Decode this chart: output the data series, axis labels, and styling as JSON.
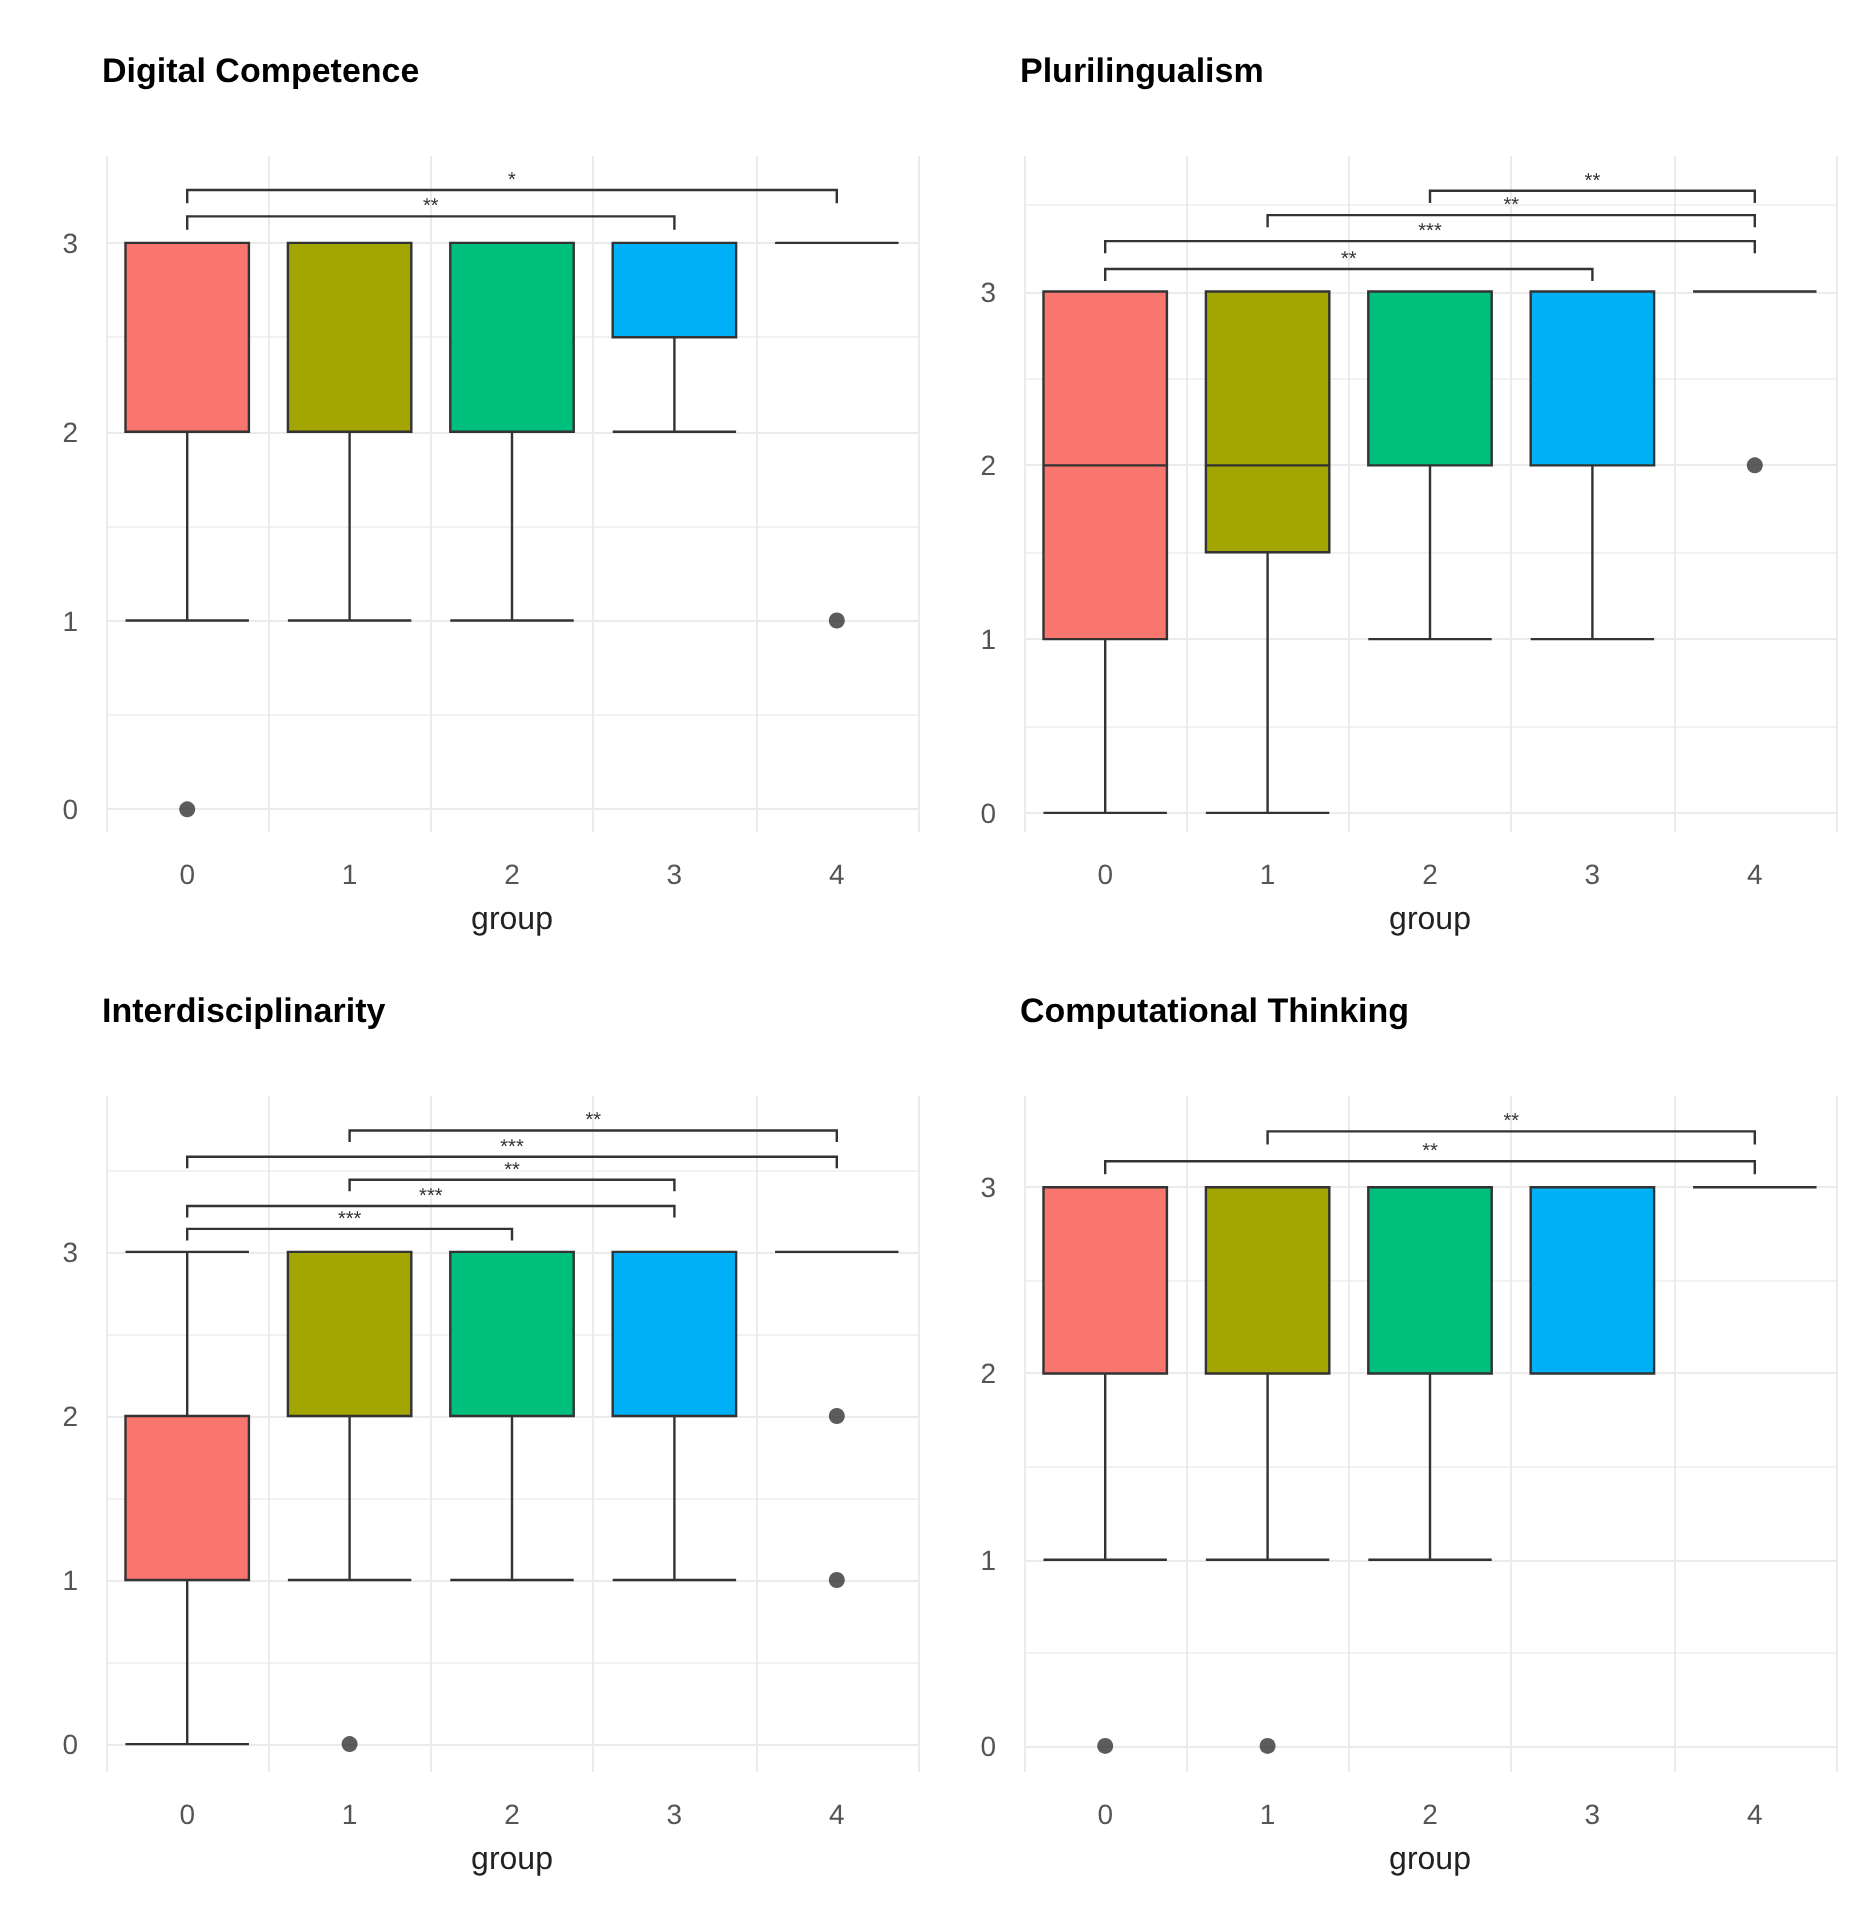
{
  "chart_data": [
    {
      "type": "box",
      "title": "Digital Competence",
      "xlabel": "group",
      "categories": [
        "0",
        "1",
        "2",
        "3",
        "4"
      ],
      "colors": [
        "#f8766d",
        "#a3a500",
        "#00bf7d",
        "#00b0f6",
        "#333333"
      ],
      "ylim": [
        -0.12,
        3.46
      ],
      "yticks": [
        0,
        1,
        2,
        3
      ],
      "grid": true,
      "boxes": [
        {
          "low": 1,
          "q1": 2,
          "median": 2,
          "q3": 3,
          "high": 3,
          "outliers": [
            0
          ]
        },
        {
          "low": 1,
          "q1": 2,
          "median": 3,
          "q3": 3,
          "high": 3
        },
        {
          "low": 1,
          "q1": 2,
          "median": 3,
          "q3": 3,
          "high": 3
        },
        {
          "low": 2,
          "q1": 2.5,
          "median": 3,
          "q3": 3,
          "high": 3
        },
        {
          "low": 3,
          "q1": 3,
          "median": 3,
          "q3": 3,
          "high": 3,
          "outliers": [
            1
          ]
        }
      ],
      "annotations": [
        "**",
        "*"
      ]
    },
    {
      "type": "box",
      "title": "Plurilingualism",
      "xlabel": "group",
      "categories": [
        "0",
        "1",
        "2",
        "3",
        "4"
      ],
      "colors": [
        "#f8766d",
        "#a3a500",
        "#00bf7d",
        "#00b0f6",
        "#333333"
      ],
      "ylim": [
        -0.11,
        3.78
      ],
      "yticks": [
        0,
        1,
        2,
        3
      ],
      "grid": true,
      "boxes": [
        {
          "low": 0,
          "q1": 1,
          "median": 2,
          "q3": 3,
          "high": 3
        },
        {
          "low": 0,
          "q1": 1.5,
          "median": 2,
          "q3": 3,
          "high": 3
        },
        {
          "low": 1,
          "q1": 2,
          "median": 2,
          "q3": 3,
          "high": 3
        },
        {
          "low": 1,
          "q1": 2,
          "median": 3,
          "q3": 3,
          "high": 3
        },
        {
          "low": 3,
          "q1": 3,
          "median": 3,
          "q3": 3,
          "high": 3,
          "outliers": [
            2
          ]
        }
      ],
      "annotations": [
        "**",
        "***",
        "**",
        "**"
      ]
    },
    {
      "type": "box",
      "title": "Interdisciplinarity",
      "xlabel": "group",
      "categories": [
        "0",
        "1",
        "2",
        "3",
        "4"
      ],
      "colors": [
        "#f8766d",
        "#a3a500",
        "#00bf7d",
        "#00b0f6",
        "#333333"
      ],
      "ylim": [
        -0.17,
        3.95
      ],
      "yticks": [
        0,
        1,
        2,
        3
      ],
      "grid": true,
      "boxes": [
        {
          "low": 0,
          "q1": 1,
          "median": 2,
          "q3": 2,
          "high": 3
        },
        {
          "low": 1,
          "q1": 2,
          "median": 2,
          "q3": 3,
          "high": 3,
          "outliers": [
            0
          ]
        },
        {
          "low": 1,
          "q1": 2,
          "median": 3,
          "q3": 3,
          "high": 3
        },
        {
          "low": 1,
          "q1": 2,
          "median": 3,
          "q3": 3,
          "high": 3
        },
        {
          "low": 3,
          "q1": 3,
          "median": 3,
          "q3": 3,
          "high": 3,
          "outliers": [
            2,
            1
          ]
        }
      ],
      "annotations": [
        "***",
        "***",
        "**",
        "***",
        "**"
      ]
    },
    {
      "type": "box",
      "title": "Computational Thinking",
      "xlabel": "group",
      "categories": [
        "0",
        "1",
        "2",
        "3",
        "4"
      ],
      "colors": [
        "#f8766d",
        "#a3a500",
        "#00bf7d",
        "#00b0f6",
        "#333333"
      ],
      "ylim": [
        -0.14,
        3.49
      ],
      "yticks": [
        0,
        1,
        2,
        3
      ],
      "grid": true,
      "boxes": [
        {
          "low": 1,
          "q1": 2,
          "median": 2,
          "q3": 3,
          "high": 3,
          "outliers": [
            0
          ]
        },
        {
          "low": 1,
          "q1": 2,
          "median": 2,
          "q3": 3,
          "high": 3,
          "outliers": [
            0
          ]
        },
        {
          "low": 1,
          "q1": 2,
          "median": 3,
          "q3": 3,
          "high": 3
        },
        {
          "low": 2,
          "q1": 2,
          "median": 3,
          "q3": 3,
          "high": 3
        },
        {
          "low": 3,
          "q1": 3,
          "median": 3,
          "q3": 3,
          "high": 3
        }
      ],
      "annotations": [
        "**",
        "**"
      ]
    }
  ]
}
